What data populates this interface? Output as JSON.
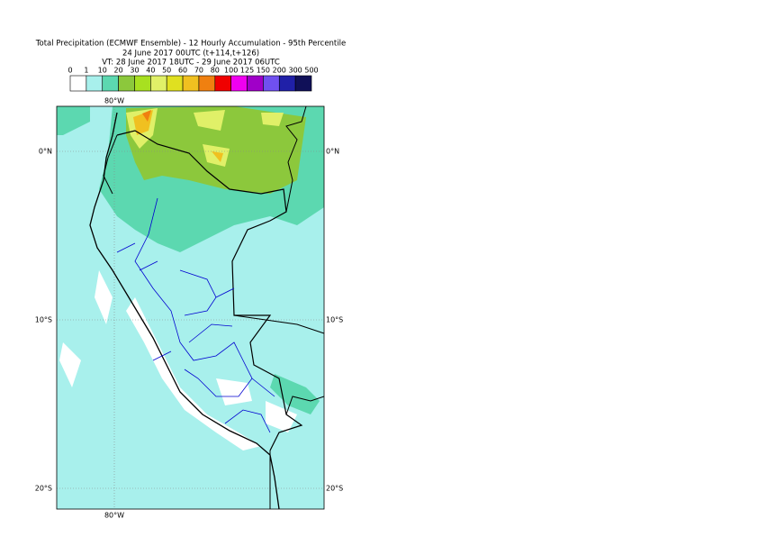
{
  "title": {
    "line1": "Total Precipitation (ECMWF Ensemble) - 12 Hourly Accumulation - 95th Percentile",
    "line2": "24 June 2017 00UTC (t+114,t+126)",
    "line3": "VT: 28 June 2017 18UTC - 29 June 2017 06UTC"
  },
  "legend": {
    "labels": [
      "0",
      "1",
      "10",
      "20",
      "30",
      "40",
      "50",
      "60",
      "70",
      "80",
      "100",
      "125",
      "150",
      "200",
      "300",
      "500"
    ],
    "colors": [
      "#ffffff",
      "#a8f0ec",
      "#5cd8b0",
      "#8cc83c",
      "#a8e020",
      "#e0f068",
      "#e0e020",
      "#f0c020",
      "#f08010",
      "#f00000",
      "#f000f0",
      "#a000c8",
      "#7050f0",
      "#2020a8",
      "#101058"
    ]
  },
  "grid_labels": {
    "top": [
      "80°W"
    ],
    "bottom": [
      "80°W"
    ],
    "left": [
      "0°N",
      "10°S",
      "20°S"
    ],
    "right": [
      "0°N",
      "10°S",
      "20°S"
    ]
  }
}
